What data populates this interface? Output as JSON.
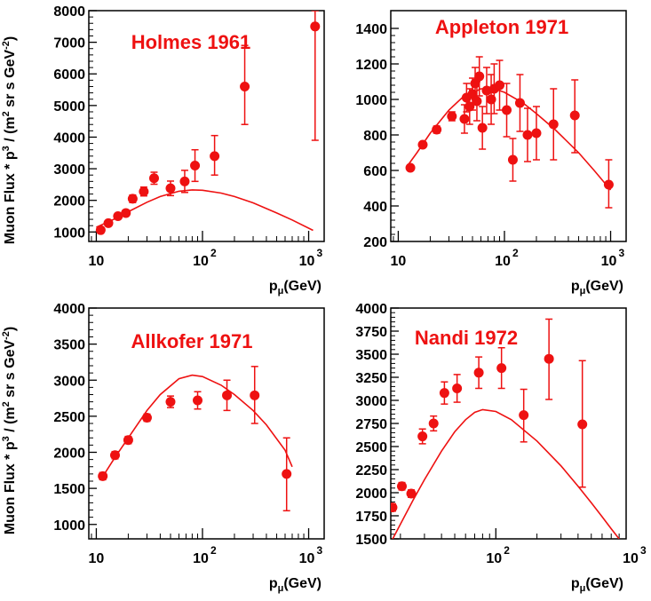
{
  "colors": {
    "data": "#ee1111",
    "axis": "#000000"
  },
  "ylabel_text": "Muon Flux * p",
  "ylabel_sup1": "3",
  "ylabel_mid": " / (m",
  "ylabel_sup2": "2",
  "ylabel_mid2": " sr s GeV",
  "ylabel_sup3": "-2",
  "ylabel_end": ")",
  "xlabel_main": "p",
  "xlabel_sub": "μ",
  "xlabel_unit": "(GeV)",
  "chart_data": [
    {
      "type": "scatter",
      "title": "Holmes 1961",
      "xscale": "log",
      "xlim": [
        8.5,
        1400
      ],
      "ylim": [
        700,
        8000
      ],
      "yticks": [
        1000,
        2000,
        3000,
        4000,
        5000,
        6000,
        7000,
        8000
      ],
      "xtick_labels": [
        "10",
        "10",
        "2",
        "10",
        "3"
      ],
      "points": [
        {
          "x": 11,
          "y": 1060,
          "lo": 1000,
          "hi": 1120
        },
        {
          "x": 13,
          "y": 1280,
          "lo": 1210,
          "hi": 1350
        },
        {
          "x": 16,
          "y": 1500,
          "lo": 1420,
          "hi": 1580
        },
        {
          "x": 19,
          "y": 1600,
          "lo": 1510,
          "hi": 1690
        },
        {
          "x": 22,
          "y": 2050,
          "lo": 1930,
          "hi": 2170
        },
        {
          "x": 28,
          "y": 2280,
          "lo": 2140,
          "hi": 2420
        },
        {
          "x": 35,
          "y": 2700,
          "lo": 2510,
          "hi": 2890
        },
        {
          "x": 50,
          "y": 2380,
          "lo": 2150,
          "hi": 2610
        },
        {
          "x": 68,
          "y": 2600,
          "lo": 2250,
          "hi": 2950
        },
        {
          "x": 85,
          "y": 3100,
          "lo": 2600,
          "hi": 3600
        },
        {
          "x": 130,
          "y": 3400,
          "lo": 2800,
          "hi": 4050
        },
        {
          "x": 250,
          "y": 5600,
          "lo": 4400,
          "hi": 6900
        },
        {
          "x": 1150,
          "y": 7500,
          "lo": 3900,
          "hi": 8000
        }
      ],
      "curve": [
        [
          10,
          1150
        ],
        [
          15,
          1420
        ],
        [
          20,
          1640
        ],
        [
          30,
          1940
        ],
        [
          40,
          2120
        ],
        [
          60,
          2290
        ],
        [
          80,
          2330
        ],
        [
          100,
          2320
        ],
        [
          150,
          2230
        ],
        [
          200,
          2120
        ],
        [
          300,
          1920
        ],
        [
          500,
          1600
        ],
        [
          700,
          1380
        ],
        [
          1100,
          1050
        ]
      ]
    },
    {
      "type": "scatter",
      "title": "Appleton 1971",
      "xscale": "log",
      "xlim": [
        8.5,
        1400
      ],
      "ylim": [
        200,
        1500
      ],
      "yticks": [
        200,
        400,
        600,
        800,
        1000,
        1200,
        1400
      ],
      "xtick_labels": [
        "10",
        "10",
        "2",
        "10",
        "3"
      ],
      "points": [
        {
          "x": 13,
          "y": 615,
          "lo": 600,
          "hi": 630
        },
        {
          "x": 17,
          "y": 745,
          "lo": 730,
          "hi": 760
        },
        {
          "x": 23,
          "y": 830,
          "lo": 810,
          "hi": 850
        },
        {
          "x": 32,
          "y": 905,
          "lo": 880,
          "hi": 930
        },
        {
          "x": 42,
          "y": 890,
          "lo": 810,
          "hi": 970
        },
        {
          "x": 44,
          "y": 1010,
          "lo": 930,
          "hi": 1090
        },
        {
          "x": 47,
          "y": 960,
          "lo": 860,
          "hi": 1060
        },
        {
          "x": 50,
          "y": 1030,
          "lo": 940,
          "hi": 1120
        },
        {
          "x": 53,
          "y": 1090,
          "lo": 1000,
          "hi": 1180
        },
        {
          "x": 55,
          "y": 990,
          "lo": 880,
          "hi": 1100
        },
        {
          "x": 58,
          "y": 1130,
          "lo": 1020,
          "hi": 1240
        },
        {
          "x": 62,
          "y": 840,
          "lo": 720,
          "hi": 960
        },
        {
          "x": 68,
          "y": 1050,
          "lo": 920,
          "hi": 1180
        },
        {
          "x": 75,
          "y": 1000,
          "lo": 860,
          "hi": 1140
        },
        {
          "x": 80,
          "y": 1060,
          "lo": 920,
          "hi": 1200
        },
        {
          "x": 90,
          "y": 1080,
          "lo": 940,
          "hi": 1220
        },
        {
          "x": 105,
          "y": 940,
          "lo": 790,
          "hi": 1090
        },
        {
          "x": 120,
          "y": 660,
          "lo": 540,
          "hi": 780
        },
        {
          "x": 140,
          "y": 980,
          "lo": 820,
          "hi": 1140
        },
        {
          "x": 165,
          "y": 800,
          "lo": 650,
          "hi": 950
        },
        {
          "x": 200,
          "y": 810,
          "lo": 660,
          "hi": 960
        },
        {
          "x": 290,
          "y": 860,
          "lo": 660,
          "hi": 1060
        },
        {
          "x": 460,
          "y": 910,
          "lo": 700,
          "hi": 1110
        },
        {
          "x": 960,
          "y": 520,
          "lo": 390,
          "hi": 660
        }
      ],
      "curve": [
        [
          12,
          620
        ],
        [
          15,
          700
        ],
        [
          20,
          810
        ],
        [
          30,
          940
        ],
        [
          40,
          1010
        ],
        [
          60,
          1060
        ],
        [
          80,
          1060
        ],
        [
          100,
          1040
        ],
        [
          150,
          980
        ],
        [
          200,
          920
        ],
        [
          300,
          830
        ],
        [
          500,
          700
        ],
        [
          700,
          600
        ],
        [
          1000,
          490
        ]
      ]
    },
    {
      "type": "scatter",
      "title": "Allkofer 1971",
      "xscale": "log",
      "xlim": [
        8.5,
        1400
      ],
      "ylim": [
        800,
        4000
      ],
      "yticks": [
        1000,
        1500,
        2000,
        2500,
        3000,
        3500,
        4000
      ],
      "xtick_labels": [
        "10",
        "10",
        "2",
        "10",
        "3"
      ],
      "points": [
        {
          "x": 11.5,
          "y": 1670,
          "lo": 1620,
          "hi": 1720
        },
        {
          "x": 15,
          "y": 1960,
          "lo": 1910,
          "hi": 2010
        },
        {
          "x": 20,
          "y": 2170,
          "lo": 2120,
          "hi": 2220
        },
        {
          "x": 30,
          "y": 2480,
          "lo": 2430,
          "hi": 2530
        },
        {
          "x": 50,
          "y": 2700,
          "lo": 2620,
          "hi": 2780
        },
        {
          "x": 90,
          "y": 2720,
          "lo": 2600,
          "hi": 2840
        },
        {
          "x": 170,
          "y": 2790,
          "lo": 2580,
          "hi": 3000
        },
        {
          "x": 310,
          "y": 2790,
          "lo": 2400,
          "hi": 3190
        },
        {
          "x": 620,
          "y": 1700,
          "lo": 1190,
          "hi": 2200
        }
      ],
      "curve": [
        [
          11,
          1620
        ],
        [
          15,
          1930
        ],
        [
          20,
          2200
        ],
        [
          30,
          2580
        ],
        [
          40,
          2800
        ],
        [
          60,
          3020
        ],
        [
          80,
          3070
        ],
        [
          100,
          3050
        ],
        [
          150,
          2930
        ],
        [
          200,
          2800
        ],
        [
          300,
          2580
        ],
        [
          400,
          2380
        ],
        [
          600,
          2030
        ],
        [
          700,
          1800
        ]
      ]
    },
    {
      "type": "scatter",
      "title": "Nandi 1972",
      "xscale": "log",
      "xlim": [
        17,
        900
      ],
      "ylim": [
        1500,
        4000
      ],
      "yticks": [
        1500,
        1750,
        2000,
        2250,
        2500,
        2750,
        3000,
        3250,
        3500,
        3750,
        4000
      ],
      "xtick_labels": [
        "10",
        "2",
        "10",
        "3"
      ],
      "points": [
        {
          "x": 17.5,
          "y": 1840,
          "lo": 1800,
          "hi": 1880
        },
        {
          "x": 20.5,
          "y": 2070,
          "lo": 2030,
          "hi": 2110
        },
        {
          "x": 24,
          "y": 1990,
          "lo": 1950,
          "hi": 2030
        },
        {
          "x": 29,
          "y": 2610,
          "lo": 2530,
          "hi": 2690
        },
        {
          "x": 35,
          "y": 2750,
          "lo": 2670,
          "hi": 2830
        },
        {
          "x": 42,
          "y": 3080,
          "lo": 2960,
          "hi": 3200
        },
        {
          "x": 52,
          "y": 3130,
          "lo": 2980,
          "hi": 3280
        },
        {
          "x": 75,
          "y": 3300,
          "lo": 3130,
          "hi": 3470
        },
        {
          "x": 110,
          "y": 3350,
          "lo": 3130,
          "hi": 3570
        },
        {
          "x": 160,
          "y": 2840,
          "lo": 2550,
          "hi": 3120
        },
        {
          "x": 245,
          "y": 3450,
          "lo": 3010,
          "hi": 3880
        },
        {
          "x": 430,
          "y": 2740,
          "lo": 2060,
          "hi": 3430
        }
      ],
      "curve": [
        [
          17,
          1460
        ],
        [
          20,
          1660
        ],
        [
          25,
          1930
        ],
        [
          30,
          2140
        ],
        [
          40,
          2450
        ],
        [
          50,
          2660
        ],
        [
          60,
          2790
        ],
        [
          70,
          2870
        ],
        [
          80,
          2900
        ],
        [
          100,
          2880
        ],
        [
          130,
          2790
        ],
        [
          200,
          2560
        ],
        [
          300,
          2290
        ],
        [
          400,
          2070
        ],
        [
          500,
          1890
        ],
        [
          600,
          1740
        ],
        [
          700,
          1610
        ],
        [
          800,
          1500
        ]
      ]
    }
  ]
}
